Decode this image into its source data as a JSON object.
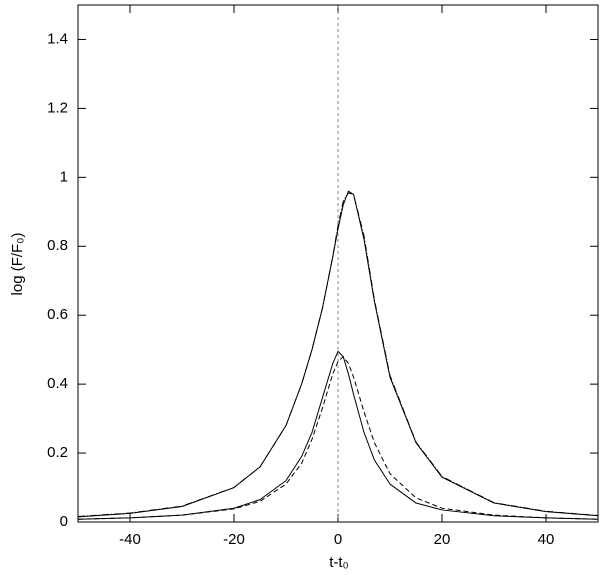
{
  "chart_data": {
    "type": "line",
    "xlabel": "t-t₀",
    "ylabel": "log (F/F₀)",
    "x": [
      -50,
      -40,
      -30,
      -20,
      -15,
      -10,
      -7,
      -5,
      -3,
      -1,
      0,
      1,
      2,
      3,
      5,
      7,
      10,
      15,
      20,
      30,
      40,
      50
    ],
    "series": [
      {
        "color": "#000000",
        "dash": "solid",
        "values": [
          0.015,
          0.025,
          0.045,
          0.1,
          0.16,
          0.28,
          0.4,
          0.5,
          0.62,
          0.77,
          0.85,
          0.92,
          0.96,
          0.95,
          0.82,
          0.64,
          0.42,
          0.23,
          0.13,
          0.055,
          0.03,
          0.018
        ]
      },
      {
        "color": "#000000",
        "dash": "dashdot",
        "values": [
          0.016,
          0.026,
          0.046,
          0.1,
          0.16,
          0.28,
          0.4,
          0.5,
          0.62,
          0.77,
          0.86,
          0.93,
          0.955,
          0.95,
          0.83,
          0.645,
          0.425,
          0.232,
          0.132,
          0.056,
          0.031,
          0.019
        ]
      },
      {
        "color": "#000000",
        "dash": "solid",
        "values": [
          0.008,
          0.012,
          0.02,
          0.04,
          0.065,
          0.12,
          0.19,
          0.26,
          0.36,
          0.46,
          0.495,
          0.48,
          0.43,
          0.37,
          0.26,
          0.18,
          0.11,
          0.055,
          0.035,
          0.018,
          0.012,
          0.008
        ]
      },
      {
        "color": "#000000",
        "dash": "dashed",
        "values": [
          0.008,
          0.012,
          0.02,
          0.038,
          0.06,
          0.11,
          0.17,
          0.24,
          0.33,
          0.43,
          0.465,
          0.48,
          0.46,
          0.42,
          0.32,
          0.23,
          0.14,
          0.07,
          0.04,
          0.02,
          0.012,
          0.008
        ]
      }
    ],
    "vline": 0,
    "xlim": [
      -50,
      50
    ],
    "ylim": [
      0,
      1.5
    ],
    "xticks": [
      -40,
      -20,
      0,
      20,
      40
    ],
    "yticks": [
      0,
      0.2,
      0.4,
      0.6,
      0.8,
      1,
      1.2,
      1.4
    ]
  }
}
